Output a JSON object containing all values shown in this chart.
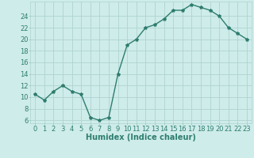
{
  "xlabel": "Humidex (Indice chaleur)",
  "x": [
    0,
    1,
    2,
    3,
    4,
    5,
    6,
    7,
    8,
    9,
    10,
    11,
    12,
    13,
    14,
    15,
    16,
    17,
    18,
    19,
    20,
    21,
    22,
    23
  ],
  "y": [
    10.5,
    9.5,
    11.0,
    12.0,
    11.0,
    10.5,
    6.5,
    6.0,
    6.5,
    14.0,
    19.0,
    20.0,
    22.0,
    22.5,
    23.5,
    25.0,
    25.0,
    26.0,
    25.5,
    25.0,
    24.0,
    22.0,
    21.0,
    20.0
  ],
  "line_color": "#2e7d6e",
  "marker": "*",
  "marker_size": 3,
  "bg_color": "#ceecea",
  "grid_color": "#aed4d0",
  "ylim": [
    5.5,
    26.5
  ],
  "yticks": [
    6,
    8,
    10,
    12,
    14,
    16,
    18,
    20,
    22,
    24
  ],
  "xlim": [
    -0.5,
    23.5
  ],
  "tick_fontsize": 6,
  "label_fontsize": 7,
  "line_width": 1.0
}
